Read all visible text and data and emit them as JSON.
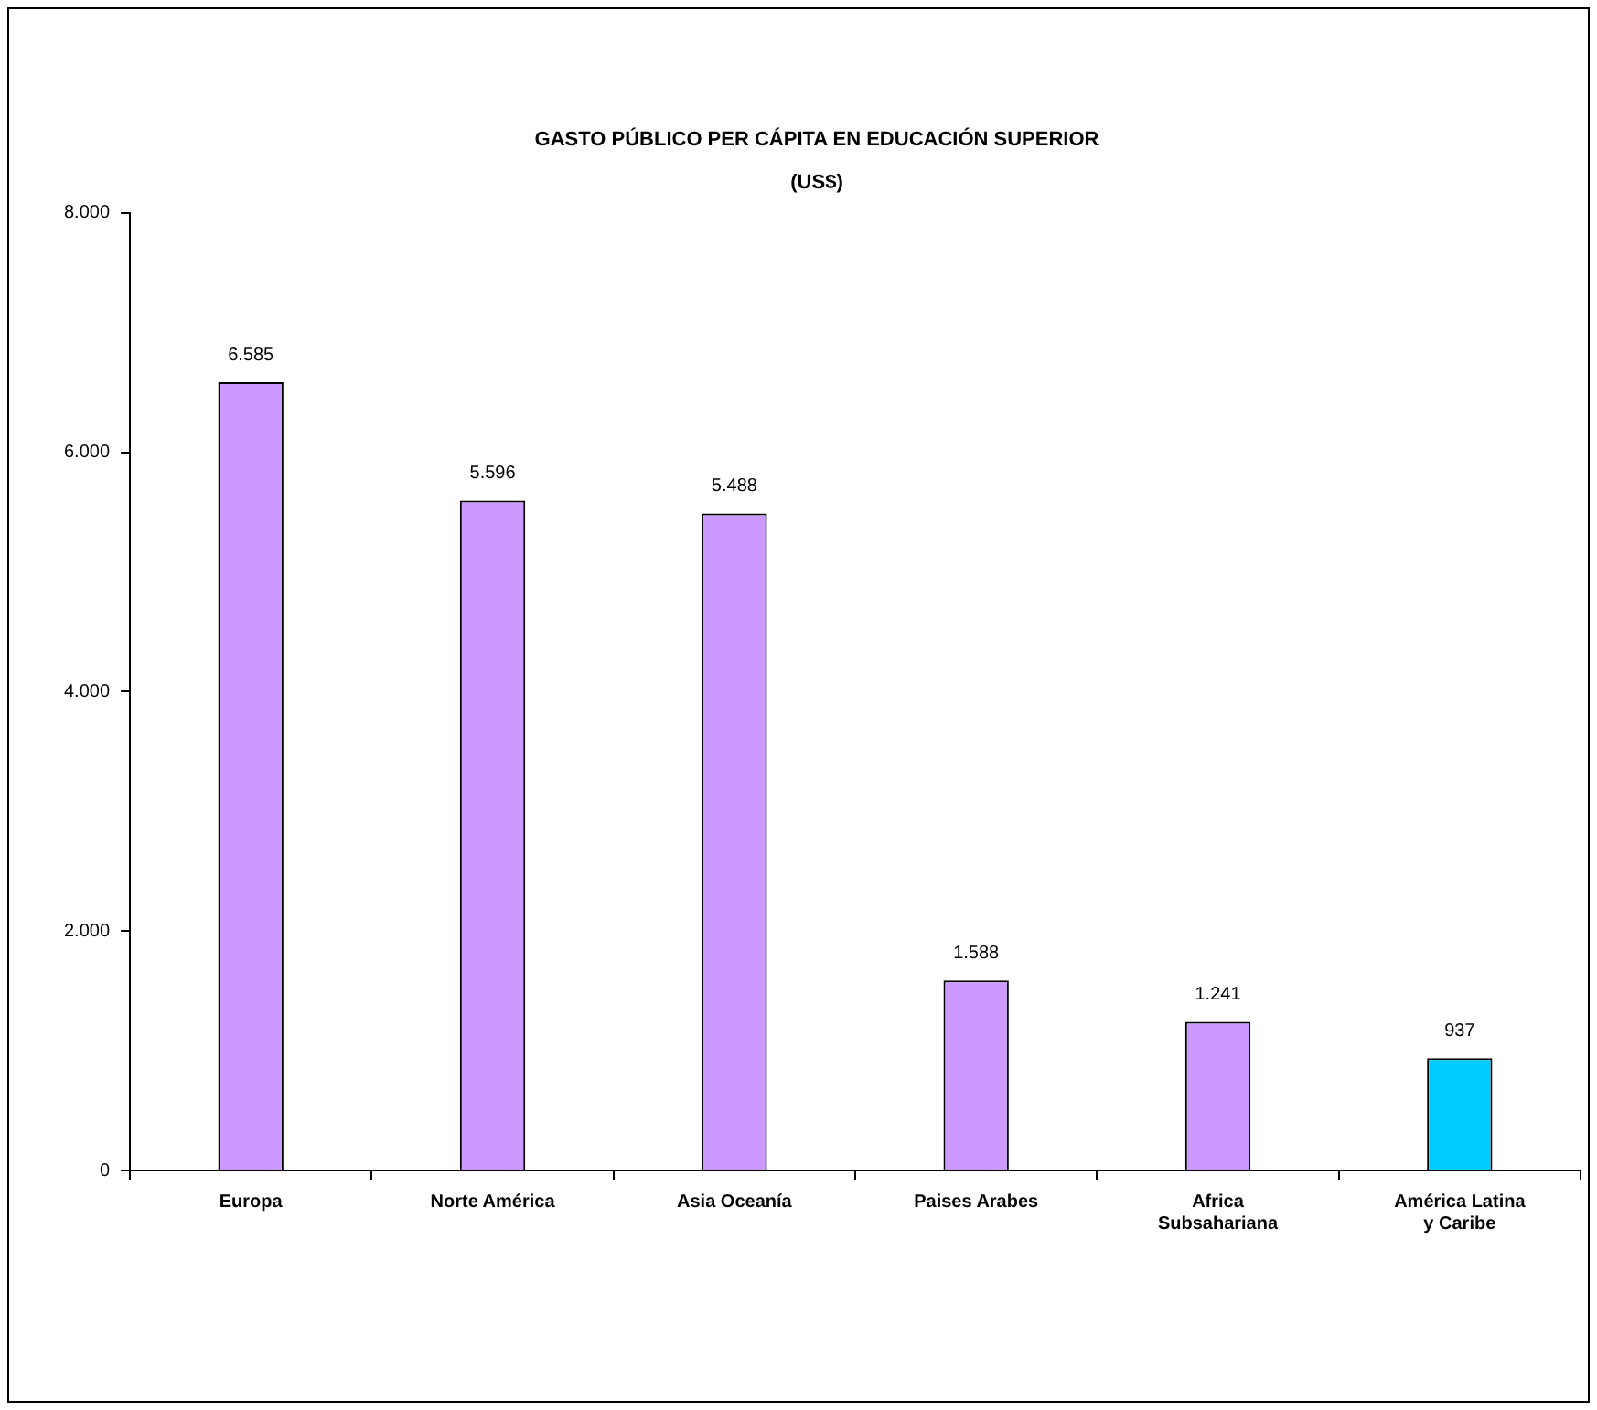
{
  "chart_data": {
    "type": "bar",
    "title": "GASTO PÚBLICO PER CÁPITA EN EDUCACIÓN SUPERIOR",
    "subtitle": "(US$)",
    "categories": [
      "Europa",
      "Norte América",
      "Asia Oceanía",
      "Paises Arabes",
      "Africa Subsahariana",
      "América Latina y Caribe"
    ],
    "values": [
      6585,
      5596,
      5488,
      1588,
      1241,
      937
    ],
    "colors": [
      "#cc99ff",
      "#cc99ff",
      "#cc99ff",
      "#cc99ff",
      "#cc99ff",
      "#00ccff"
    ],
    "value_labels": [
      "6.585",
      "5.596",
      "5.488",
      "1.588",
      "1.241",
      "937"
    ],
    "ylim": [
      0,
      8000
    ],
    "yticks": [
      {
        "value": 0,
        "label": "0"
      },
      {
        "value": 2000,
        "label": "2.000"
      },
      {
        "value": 4000,
        "label": "4.000"
      },
      {
        "value": 6000,
        "label": "6.000"
      },
      {
        "value": 8000,
        "label": "8.000"
      }
    ],
    "grid": false,
    "legend": false
  }
}
